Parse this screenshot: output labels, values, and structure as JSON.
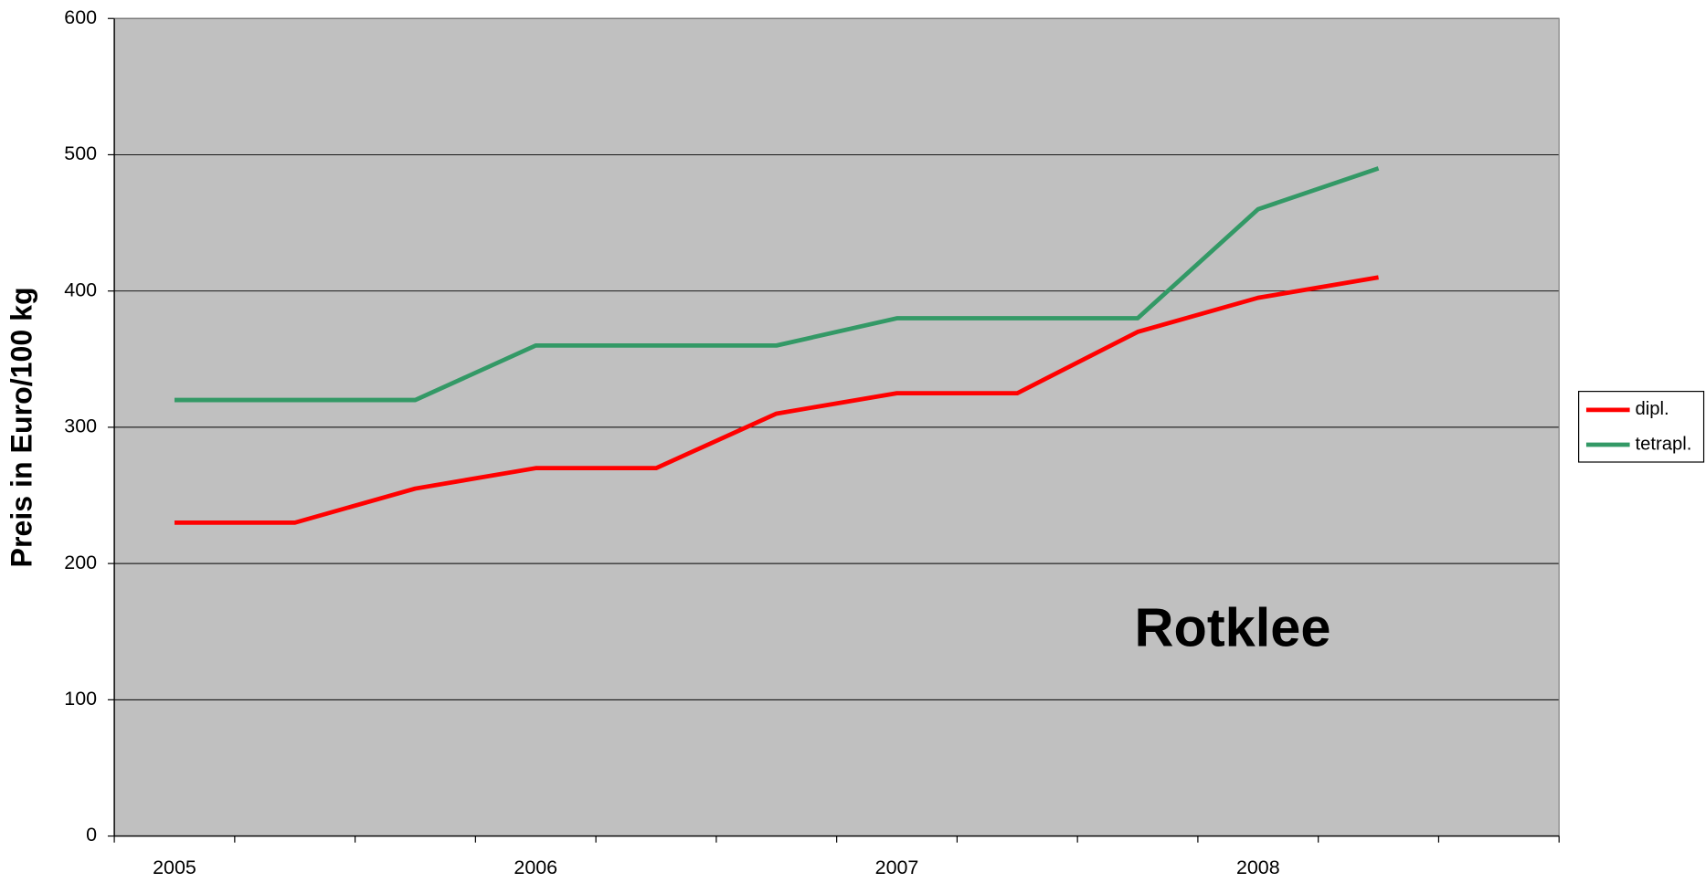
{
  "chart_data": {
    "type": "line",
    "y_label": "Preis in Euro/100 kg",
    "annotation": "Rotklee",
    "categories": [
      "2005",
      null,
      null,
      "2006",
      null,
      null,
      "2007",
      null,
      null,
      "2008",
      null,
      null
    ],
    "series": [
      {
        "name": "dipl.",
        "color": "#ff0000",
        "values": [
          230,
          230,
          255,
          270,
          270,
          310,
          325,
          325,
          370,
          395,
          410,
          null
        ]
      },
      {
        "name": "tetrapl.",
        "color": "#339966",
        "values": [
          320,
          320,
          320,
          360,
          360,
          360,
          380,
          380,
          380,
          460,
          490,
          null
        ]
      }
    ],
    "ylim": [
      0,
      600
    ],
    "yticks": [
      0,
      100,
      200,
      300,
      400,
      500,
      600
    ],
    "grid": true,
    "legend": "right",
    "plot_background": "#c0c0c0"
  }
}
